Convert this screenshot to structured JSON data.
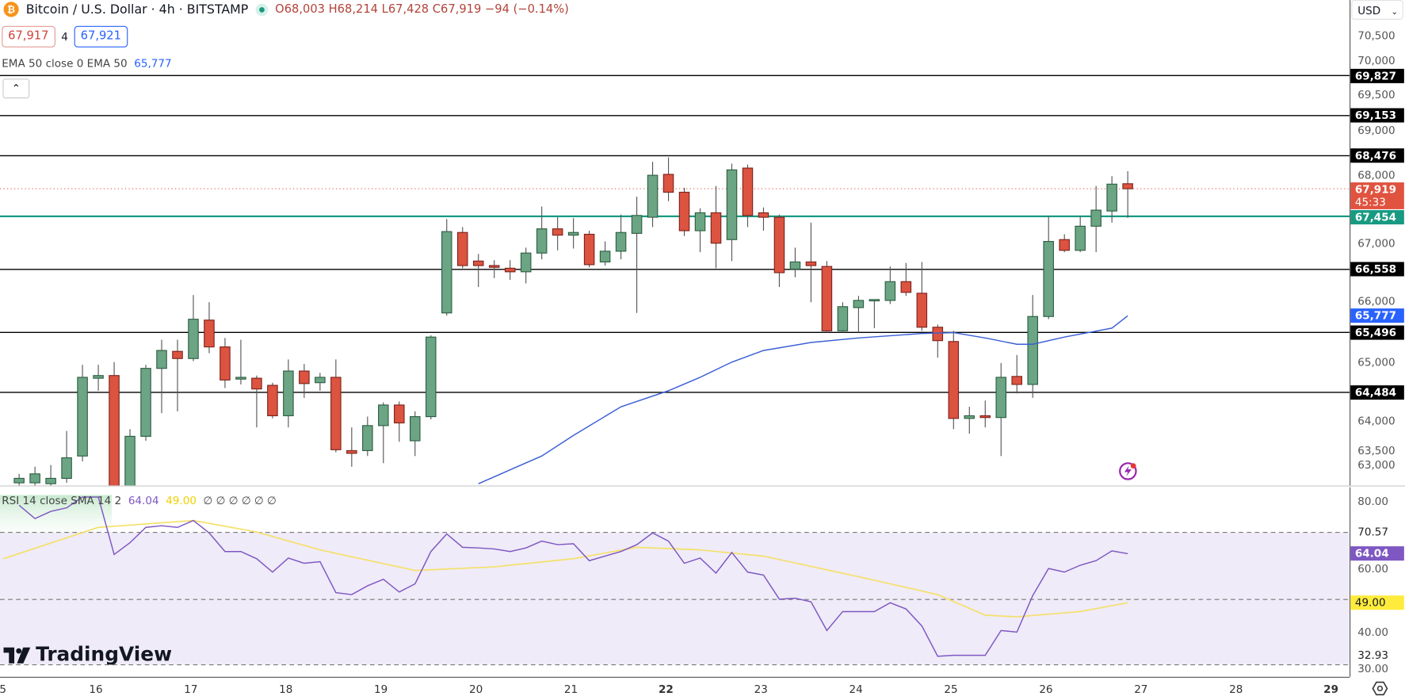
{
  "header": {
    "symbol_icon": "bitcoin-icon",
    "title": "Bitcoin / U.S. Dollar · 4h · BITSTAMP",
    "market_status": "market-open-dot",
    "ohlc": "O68,003 H68,214 L67,428 C67,919 −94 (−0.14%)",
    "sell_price": "67,917",
    "spread": "4",
    "buy_price": "67,921",
    "ema_legend": "EMA 50 close 0 EMA 50",
    "ema_value": "65,777",
    "collapse_icon": "chevron-up-icon"
  },
  "currency": "USD",
  "price_axis": {
    "ticks": [
      "70,500",
      "70,000",
      "69,500",
      "69,000",
      "68,000",
      "67,000",
      "66,000",
      "65,000",
      "64,000",
      "63,500",
      "63,000"
    ],
    "tick_values": [
      70500,
      70000,
      69500,
      69000,
      68000,
      67000,
      66000,
      65000,
      64000,
      63500,
      63000
    ],
    "levels": [
      {
        "value": 69827,
        "label": "69,827",
        "color": "#000000"
      },
      {
        "value": 69153,
        "label": "69,153",
        "color": "#000000"
      },
      {
        "value": 68476,
        "label": "68,476",
        "color": "#000000"
      },
      {
        "value": 67454,
        "label": "67,454",
        "color": "#189a82"
      },
      {
        "value": 66558,
        "label": "66,558",
        "color": "#000000"
      },
      {
        "value": 65496,
        "label": "65,496",
        "color": "#000000"
      },
      {
        "value": 64484,
        "label": "64,484",
        "color": "#000000"
      }
    ],
    "last_price": {
      "value": 67919,
      "label": "67,919",
      "countdown": "45:33",
      "color": "#e0533f"
    },
    "ema_badge": {
      "value": 65777,
      "label": "65,777",
      "color": "#2962ff"
    }
  },
  "rsi": {
    "legend": "RSI 14 close SMA 14 2",
    "rsi_value": "64.04",
    "sma_value": "49.00",
    "extra": "∅ ∅ ∅ ∅ ∅ ∅",
    "ticks": [
      "80.00",
      "70.57",
      "60.00",
      "40.00",
      "32.93",
      "30.00"
    ],
    "tick_values": [
      80,
      70.57,
      60,
      40,
      32.93,
      30
    ],
    "rsi_badge": {
      "value": 64.04,
      "label": "64.04",
      "color": "#7e57c2"
    },
    "sma_badge": {
      "value": 49.0,
      "label": "49.00",
      "color": "#ffeb3b"
    },
    "bands": [
      70,
      50,
      30
    ]
  },
  "time_axis": {
    "labels": [
      "5",
      "16",
      "17",
      "18",
      "19",
      "20",
      "21",
      "22",
      "23",
      "24",
      "25",
      "26",
      "27",
      "28",
      "29"
    ],
    "emphasized": [
      "22",
      "29"
    ]
  },
  "branding": "TradingView",
  "colors": {
    "up": "#6ba583",
    "down": "#dc5340",
    "ema": "#3b5fd6",
    "rsi": "#7e57c2",
    "sma": "#f5e06a"
  },
  "chart_data": {
    "type": "candlestick",
    "title": "Bitcoin / U.S. Dollar · 4h · BITSTAMP",
    "interval": "4h",
    "ylim": [
      62900,
      71100
    ],
    "ohlc_columns": [
      "open",
      "high",
      "low",
      "close"
    ],
    "candles": [
      [
        62959,
        63110,
        62883,
        63034
      ],
      [
        62959,
        63230,
        62883,
        63110
      ],
      [
        62944,
        63260,
        62883,
        63034
      ],
      [
        63034,
        63833,
        62959,
        63381
      ],
      [
        63411,
        64949,
        63321,
        64738
      ],
      [
        64723,
        64949,
        64512,
        64768
      ],
      [
        64768,
        64995,
        62657,
        62838
      ],
      [
        62838,
        63864,
        62733,
        63743
      ],
      [
        63743,
        64949,
        63668,
        64889
      ],
      [
        64889,
        65372,
        64135,
        65191
      ],
      [
        65176,
        65372,
        64165,
        65055
      ],
      [
        65055,
        66126,
        65010,
        65718
      ],
      [
        65703,
        66005,
        65145,
        65251
      ],
      [
        65251,
        65402,
        64557,
        64693
      ],
      [
        64708,
        65372,
        64618,
        64738
      ],
      [
        64723,
        64768,
        63894,
        64542
      ],
      [
        64603,
        64648,
        64045,
        64090
      ],
      [
        64090,
        65040,
        63894,
        64844
      ],
      [
        64844,
        64964,
        64391,
        64633
      ],
      [
        64648,
        64814,
        64512,
        64738
      ],
      [
        64738,
        65040,
        63472,
        63517
      ],
      [
        63502,
        63894,
        63230,
        63456
      ],
      [
        63502,
        64075,
        63411,
        63924
      ],
      [
        63924,
        64316,
        63291,
        64271
      ],
      [
        64271,
        64331,
        63652,
        63969
      ],
      [
        63668,
        64165,
        63411,
        64075
      ],
      [
        64075,
        65447,
        64029,
        65417
      ],
      [
        65824,
        67407,
        65779,
        67196
      ],
      [
        67181,
        67272,
        66578,
        66623
      ],
      [
        66699,
        66819,
        66261,
        66623
      ],
      [
        66623,
        66714,
        66412,
        66593
      ],
      [
        66578,
        66714,
        66382,
        66518
      ],
      [
        66518,
        66925,
        66322,
        66834
      ],
      [
        66834,
        67619,
        66729,
        67242
      ],
      [
        67242,
        67438,
        66880,
        67136
      ],
      [
        67136,
        67423,
        66910,
        67181
      ],
      [
        67151,
        67211,
        66593,
        66638
      ],
      [
        66684,
        67030,
        66623,
        66865
      ],
      [
        66865,
        67483,
        66729,
        67181
      ],
      [
        67166,
        67784,
        65824,
        67468
      ],
      [
        67438,
        68373,
        67272,
        68146
      ],
      [
        68161,
        68448,
        67709,
        67860
      ],
      [
        67860,
        67935,
        67121,
        67211
      ],
      [
        67211,
        67588,
        66849,
        67513
      ],
      [
        67513,
        67965,
        66578,
        67000
      ],
      [
        67061,
        68342,
        66699,
        68237
      ],
      [
        68267,
        68327,
        67272,
        67468
      ],
      [
        67513,
        67603,
        67211,
        67438
      ],
      [
        67438,
        67483,
        66261,
        66503
      ],
      [
        66563,
        66925,
        66427,
        66684
      ],
      [
        66684,
        67347,
        66005,
        66623
      ],
      [
        66608,
        66699,
        65492,
        65522
      ],
      [
        65522,
        66005,
        65492,
        65930
      ],
      [
        65914,
        66111,
        65492,
        66035
      ],
      [
        66035,
        66050,
        65568,
        66050
      ],
      [
        66035,
        66608,
        65975,
        66352
      ],
      [
        66352,
        66668,
        66111,
        66171
      ],
      [
        66156,
        66683,
        65522,
        65583
      ],
      [
        65583,
        65628,
        65070,
        65357
      ],
      [
        65342,
        65522,
        63864,
        64045
      ],
      [
        64045,
        64241,
        63788,
        64090
      ],
      [
        64090,
        64346,
        63894,
        64060
      ],
      [
        64060,
        64980,
        63411,
        64738
      ],
      [
        64753,
        65115,
        64467,
        64618
      ],
      [
        64618,
        66126,
        64391,
        65764
      ],
      [
        65764,
        67453,
        65718,
        67030
      ],
      [
        67061,
        67151,
        66849,
        66880
      ],
      [
        66880,
        67453,
        66849,
        67287
      ],
      [
        67287,
        67965,
        66849,
        67558
      ],
      [
        67543,
        68131,
        67347,
        67996
      ],
      [
        68003,
        68214,
        67428,
        67919
      ]
    ],
    "ema50": [
      [
        29,
        62944
      ],
      [
        33,
        63411
      ],
      [
        35,
        63758
      ],
      [
        38,
        64241
      ],
      [
        41,
        64512
      ],
      [
        43,
        64738
      ],
      [
        45,
        64995
      ],
      [
        47,
        65191
      ],
      [
        50,
        65326
      ],
      [
        53,
        65402
      ],
      [
        57,
        65477
      ],
      [
        59,
        65492
      ],
      [
        61,
        65402
      ],
      [
        63,
        65296
      ],
      [
        64,
        65296
      ],
      [
        66,
        65417
      ],
      [
        69,
        65568
      ],
      [
        70,
        65777
      ]
    ],
    "rsi14": [
      78.9,
      74.8,
      77.0,
      78.1,
      81.4,
      81.4,
      63.8,
      67.4,
      72.1,
      72.6,
      72.1,
      74.2,
      70.4,
      64.7,
      64.7,
      62.5,
      58.4,
      62.7,
      61.1,
      61.6,
      52.1,
      51.5,
      54.2,
      56.2,
      52.3,
      54.8,
      64.7,
      70.1,
      66.0,
      65.8,
      65.5,
      64.7,
      65.8,
      67.9,
      66.8,
      67.1,
      61.9,
      63.3,
      64.7,
      66.8,
      70.4,
      67.9,
      61.1,
      62.7,
      58.1,
      64.4,
      58.4,
      57.5,
      50.1,
      50.4,
      49.3,
      40.5,
      46.3,
      46.3,
      46.3,
      49.0,
      47.1,
      41.9,
      32.6,
      32.9,
      32.9,
      32.9,
      40.5,
      40.0,
      51.2,
      59.5,
      58.4,
      60.5,
      61.9,
      64.9,
      64.04
    ],
    "rsi_sma": [
      [
        -1,
        62.5
      ],
      [
        5,
        72.1
      ],
      [
        11,
        74.2
      ],
      [
        15,
        70.7
      ],
      [
        19,
        65.2
      ],
      [
        25,
        58.9
      ],
      [
        30,
        60.0
      ],
      [
        35,
        62.5
      ],
      [
        39,
        66.0
      ],
      [
        43,
        65.2
      ],
      [
        47,
        63.3
      ],
      [
        53,
        57.0
      ],
      [
        58,
        51.5
      ],
      [
        61,
        45.2
      ],
      [
        63,
        44.7
      ],
      [
        67,
        46.3
      ],
      [
        70,
        49.0
      ]
    ],
    "rsi_ylim": [
      27,
      86
    ]
  }
}
